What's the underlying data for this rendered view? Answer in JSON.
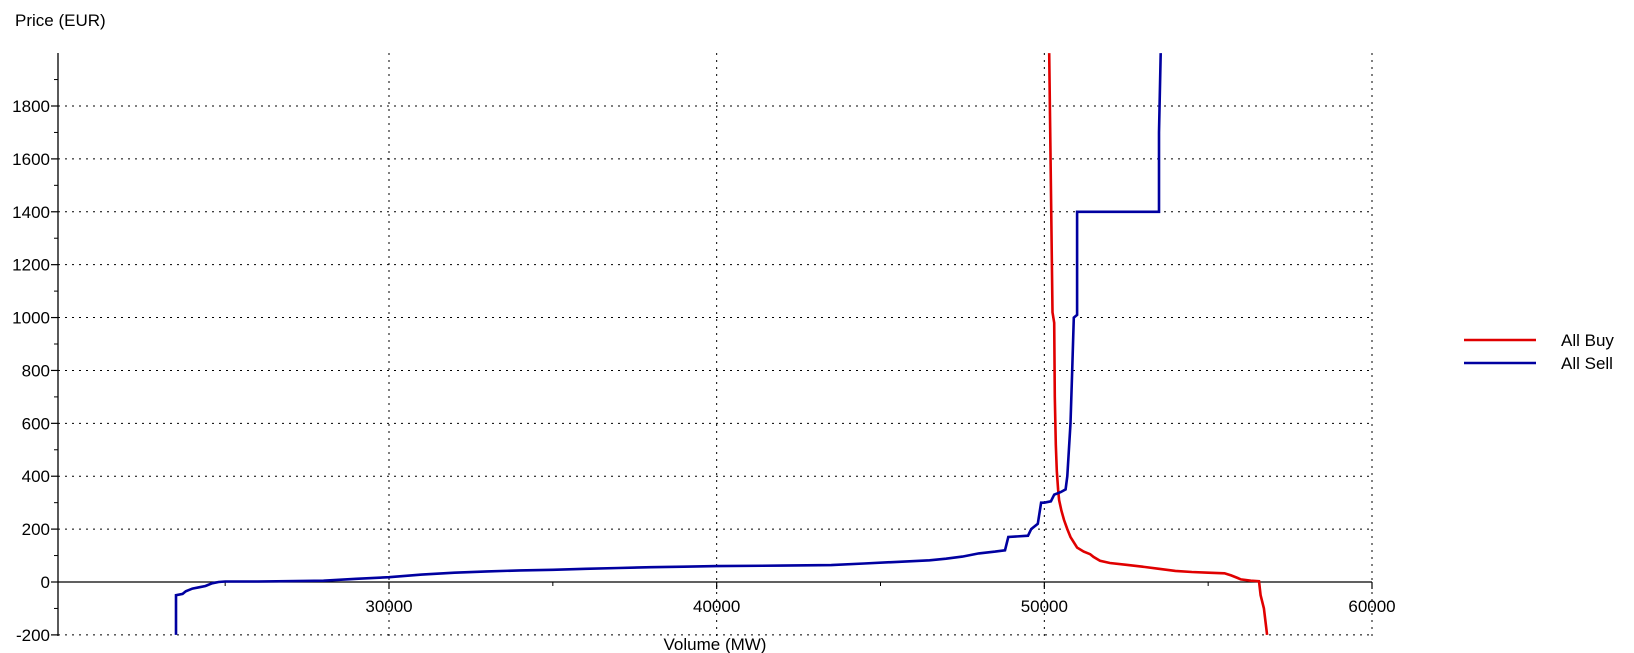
{
  "chart_data": {
    "type": "line",
    "xlabel": "Volume (MW)",
    "ylabel": "Price (EUR)",
    "xlim": [
      20500,
      60000
    ],
    "ylim": [
      -200,
      2000
    ],
    "xticks": [
      30000,
      40000,
      50000,
      60000
    ],
    "yticks": [
      -200,
      0,
      200,
      400,
      600,
      800,
      1000,
      1200,
      1400,
      1600,
      1800
    ],
    "grid": true,
    "legend_position": "right",
    "series": [
      {
        "name": "All Buy",
        "color": "#e00000",
        "points": [
          [
            50150,
            2000
          ],
          [
            50200,
            1500
          ],
          [
            50250,
            1020
          ],
          [
            50300,
            980
          ],
          [
            50320,
            700
          ],
          [
            50350,
            520
          ],
          [
            50380,
            420
          ],
          [
            50420,
            350
          ],
          [
            50450,
            310
          ],
          [
            50520,
            270
          ],
          [
            50600,
            235
          ],
          [
            50700,
            200
          ],
          [
            50800,
            170
          ],
          [
            50900,
            150
          ],
          [
            51000,
            130
          ],
          [
            51200,
            115
          ],
          [
            51400,
            105
          ],
          [
            51500,
            95
          ],
          [
            51700,
            80
          ],
          [
            52000,
            72
          ],
          [
            52500,
            65
          ],
          [
            53000,
            58
          ],
          [
            53500,
            50
          ],
          [
            54000,
            42
          ],
          [
            54500,
            38
          ],
          [
            55000,
            35
          ],
          [
            55500,
            33
          ],
          [
            55700,
            25
          ],
          [
            55900,
            15
          ],
          [
            56000,
            10
          ],
          [
            56300,
            5
          ],
          [
            56550,
            3
          ],
          [
            56600,
            -50
          ],
          [
            56700,
            -100
          ],
          [
            56750,
            -150
          ],
          [
            56800,
            -200
          ]
        ]
      },
      {
        "name": "All Sell",
        "color": "#0000a0",
        "points": [
          [
            23500,
            -200
          ],
          [
            23500,
            -50
          ],
          [
            23700,
            -45
          ],
          [
            23800,
            -35
          ],
          [
            24000,
            -25
          ],
          [
            24200,
            -20
          ],
          [
            24400,
            -15
          ],
          [
            24600,
            -5
          ],
          [
            24800,
            0
          ],
          [
            25000,
            2
          ],
          [
            26000,
            2
          ],
          [
            28000,
            5
          ],
          [
            29000,
            12
          ],
          [
            30000,
            18
          ],
          [
            31000,
            28
          ],
          [
            32000,
            35
          ],
          [
            33000,
            40
          ],
          [
            34000,
            44
          ],
          [
            35000,
            46
          ],
          [
            36000,
            50
          ],
          [
            37000,
            53
          ],
          [
            38000,
            56
          ],
          [
            39000,
            58
          ],
          [
            40000,
            60
          ],
          [
            42000,
            62
          ],
          [
            43500,
            64
          ],
          [
            44500,
            70
          ],
          [
            45500,
            76
          ],
          [
            46500,
            82
          ],
          [
            47000,
            88
          ],
          [
            47500,
            96
          ],
          [
            48000,
            108
          ],
          [
            48500,
            115
          ],
          [
            48800,
            120
          ],
          [
            48900,
            170
          ],
          [
            49500,
            175
          ],
          [
            49600,
            200
          ],
          [
            49800,
            220
          ],
          [
            49900,
            300
          ],
          [
            50000,
            300
          ],
          [
            50200,
            305
          ],
          [
            50300,
            330
          ],
          [
            50500,
            340
          ],
          [
            50650,
            350
          ],
          [
            50700,
            400
          ],
          [
            50800,
            600
          ],
          [
            50850,
            800
          ],
          [
            50900,
            1000
          ],
          [
            51000,
            1010
          ],
          [
            51000,
            1400
          ],
          [
            53500,
            1400
          ],
          [
            53500,
            1700
          ],
          [
            53550,
            2000
          ]
        ]
      }
    ]
  }
}
